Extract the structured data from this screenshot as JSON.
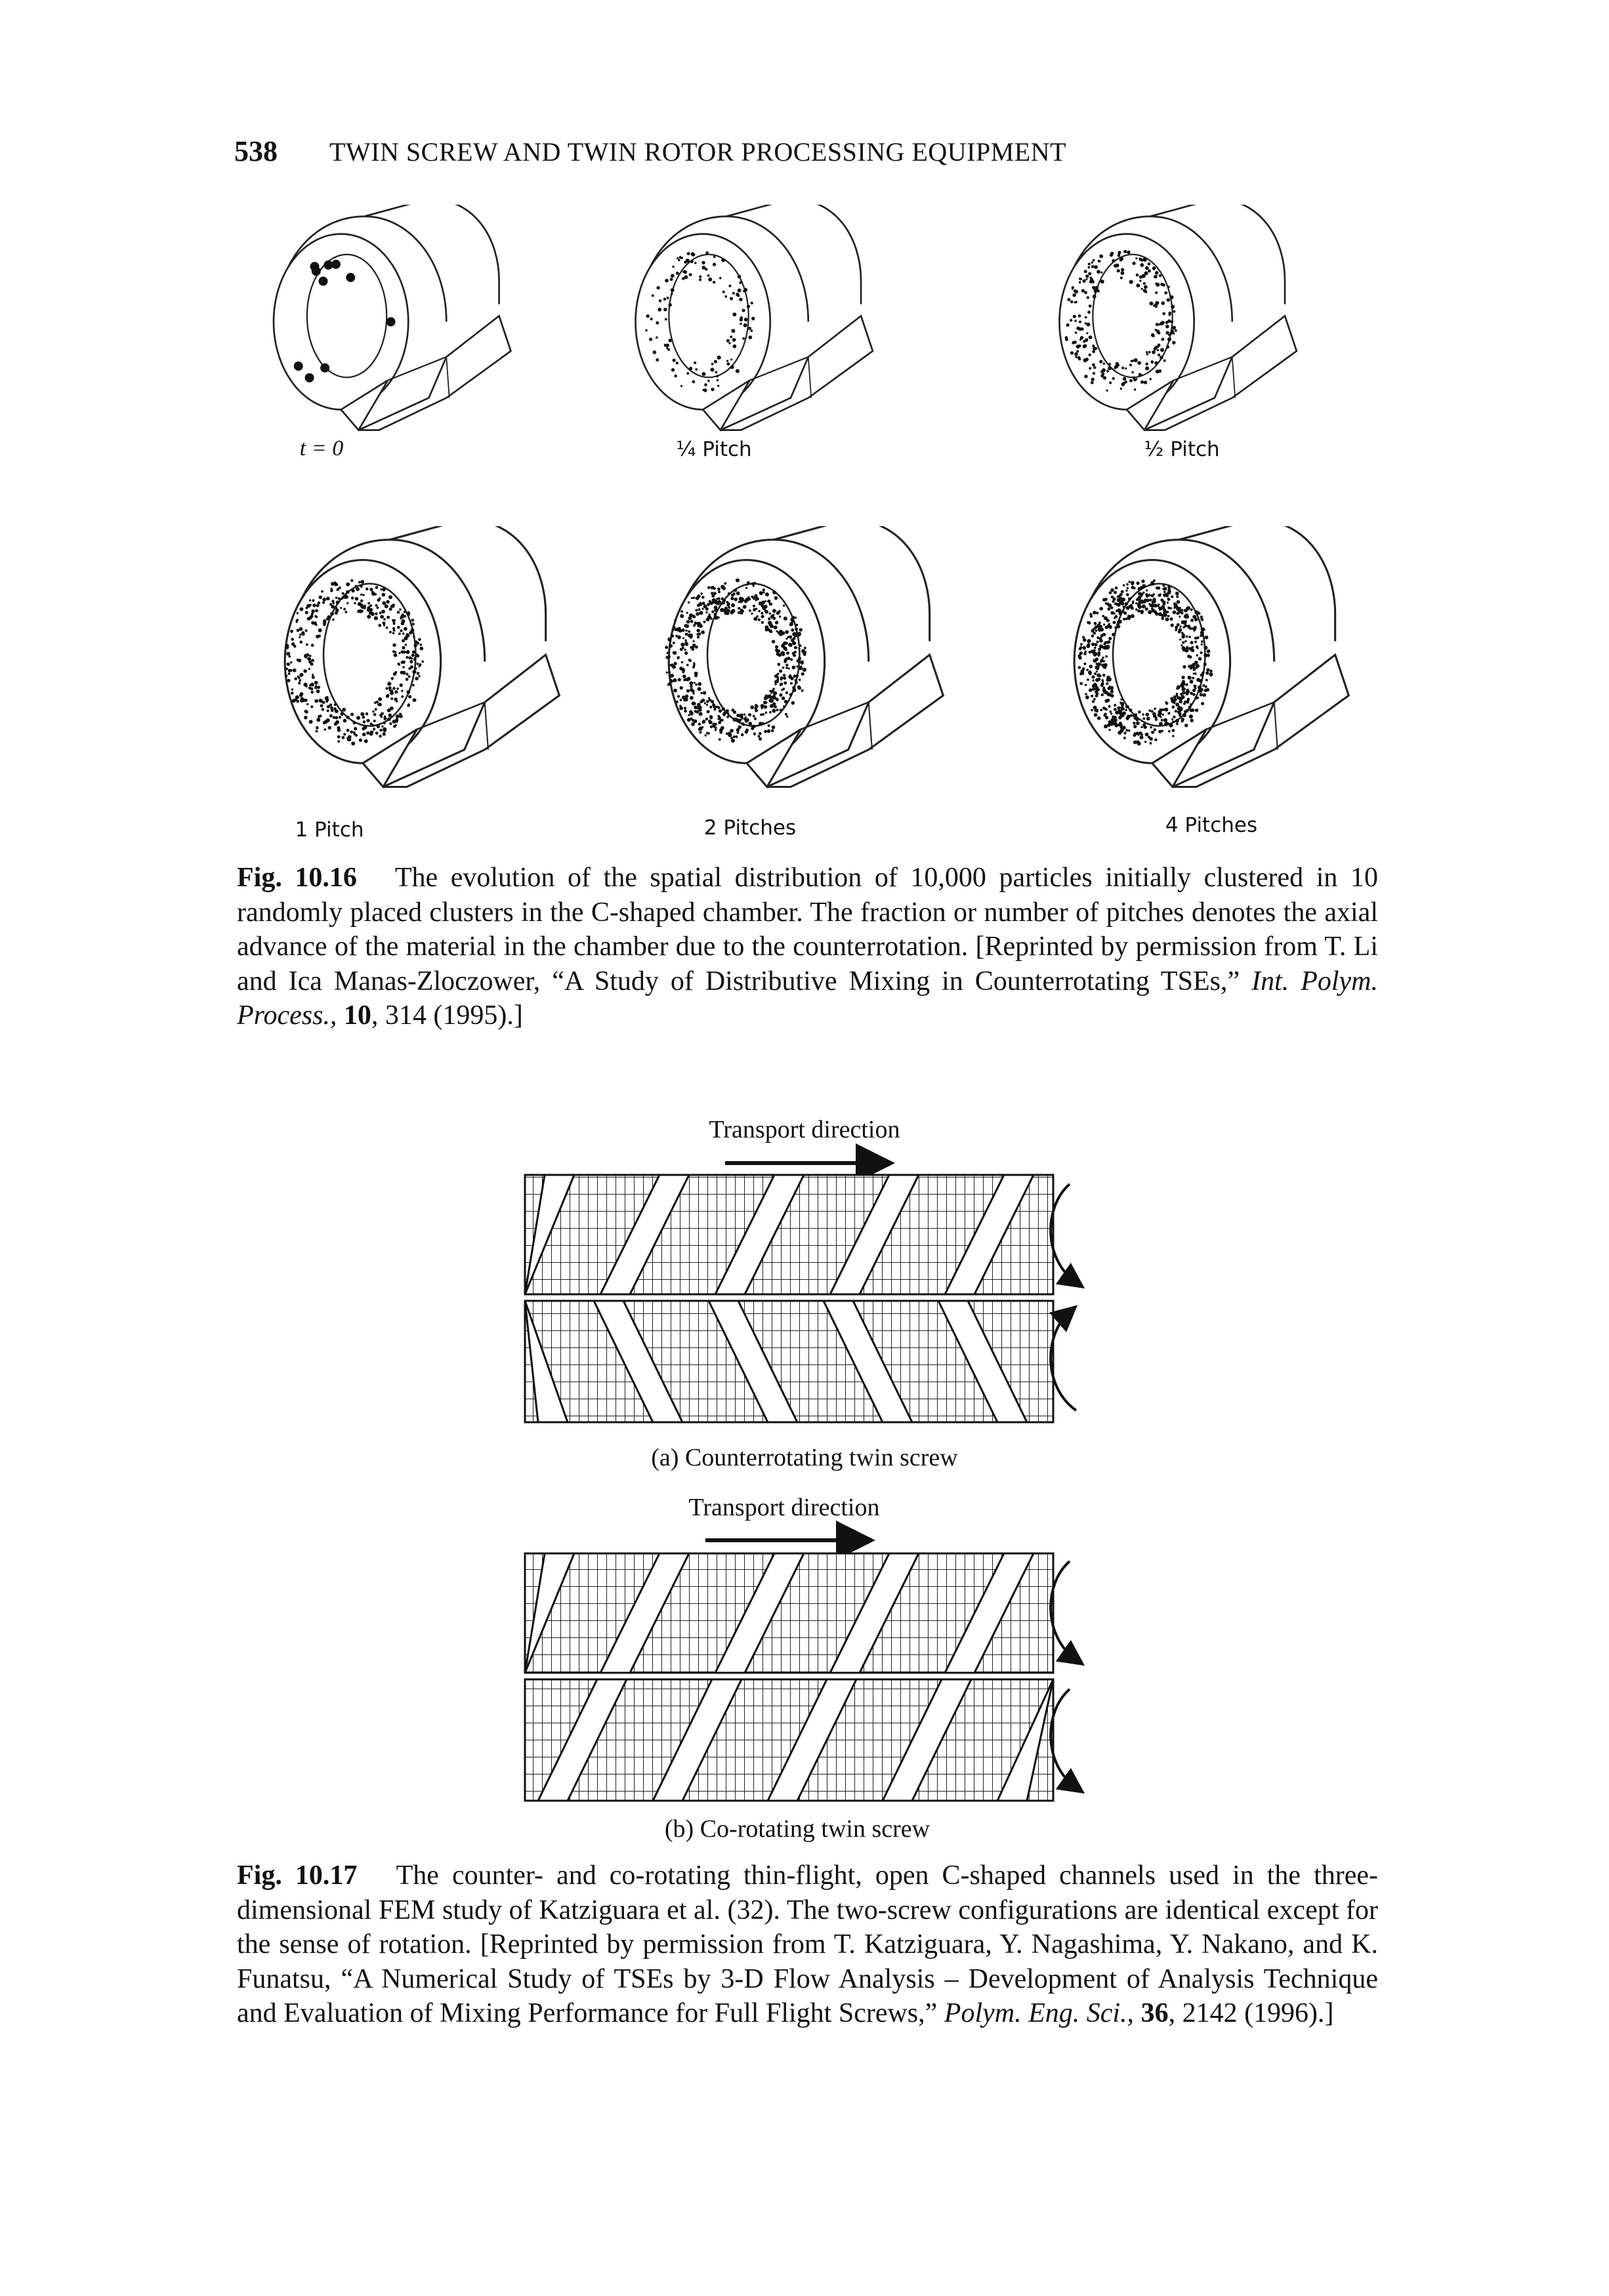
{
  "header": {
    "page_number": "538",
    "running_title": "TWIN SCREW AND TWIN ROTOR PROCESSING EQUIPMENT"
  },
  "figure_10_16": {
    "panels": [
      "t = 0",
      "¼ Pitch",
      "½ Pitch",
      "1 Pitch",
      "2 Pitches",
      "4 Pitches"
    ],
    "caption": {
      "label": "Fig. 10.16",
      "text": "The evolution of the spatial distribution of 10,000 particles initially clustered in 10 randomly placed clusters in the C-shaped chamber. The fraction or number of pitches denotes the axial advance of the material in the chamber due to the counterrotation. [Reprinted by permission from T. Li and Ica Manas-Zloczower, “A Study of Distributive Mixing in Counterrotating TSEs,”",
      "journal": "Int. Polym. Process.,",
      "volume": "10",
      "rest": ", 314 (1995).]"
    }
  },
  "figure_10_17": {
    "panel_a": {
      "annotation": "Transport direction",
      "label": "(a) Counterrotating twin screw"
    },
    "panel_b": {
      "annotation": "Transport direction",
      "label": "(b) Co-rotating twin screw"
    },
    "caption": {
      "label": "Fig. 10.17",
      "text": "The counter- and co-rotating thin-flight, open C-shaped channels used in the three-dimensional FEM study of Katziguara et al. (32). The two-screw configurations are identical except for the sense of rotation. [Reprinted by permission from T. Katziguara, Y. Nagashima, Y. Nakano, and K. Funatsu, “A Numerical Study of TSEs by 3-D Flow Analysis – Development of Analysis Technique and Evaluation of Mixing Performance for Full Flight Screws,”",
      "journal": "Polym. Eng. Sci.,",
      "volume": "36",
      "rest": ", 2142 (1996).]"
    }
  }
}
